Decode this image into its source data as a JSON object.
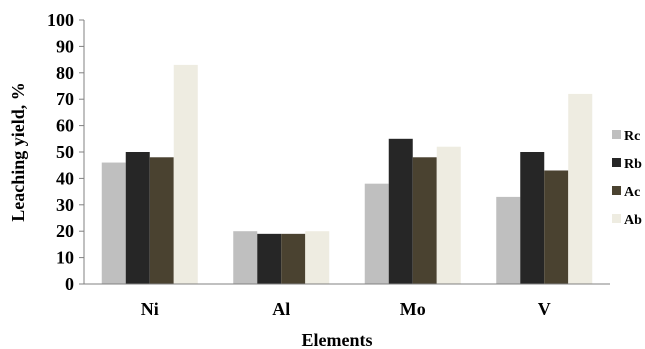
{
  "chart_data": {
    "type": "bar",
    "title": "",
    "xlabel": "Elements",
    "ylabel": "Leaching yield, %",
    "ylim": [
      0,
      100
    ],
    "yticks": [
      0,
      10,
      20,
      30,
      40,
      50,
      60,
      70,
      80,
      90,
      100
    ],
    "grid": false,
    "legend_position": "right",
    "categories": [
      "Ni",
      "Al",
      "Mo",
      "V"
    ],
    "series": [
      {
        "name": "Rc",
        "color": "#bfbfbf",
        "values": [
          46,
          20,
          38,
          33
        ]
      },
      {
        "name": "Rb",
        "color": "#262626",
        "values": [
          50,
          19,
          55,
          50
        ]
      },
      {
        "name": "Ac",
        "color": "#4a4230",
        "values": [
          48,
          19,
          48,
          43
        ]
      },
      {
        "name": "Ab",
        "color": "#eeece1",
        "values": [
          83,
          20,
          52,
          72
        ]
      }
    ]
  }
}
